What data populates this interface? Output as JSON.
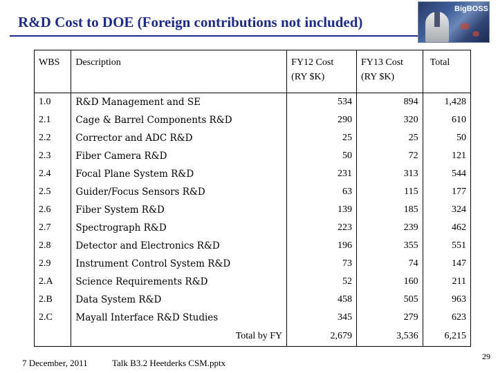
{
  "slide": {
    "title": "R&D Cost to DOE  (Foreign contributions not included)",
    "logo_text": "BigBOSS",
    "footer_date": "7 December,  2011",
    "footer_talk": "Talk B3.2  Heetderks  CSM.pptx",
    "page_number": "29"
  },
  "table": {
    "headers": {
      "wbs": "WBS",
      "description": "Description",
      "fy12_line1": "FY12 Cost",
      "fy12_line2": "(RY  $K)",
      "fy13_line1": "FY13 Cost",
      "fy13_line2": "(RY $K)",
      "total": "Total"
    },
    "rows": [
      {
        "wbs": "1.0",
        "description": "R&D Management and SE",
        "fy12": "534",
        "fy13": "894",
        "total": "1,428"
      },
      {
        "wbs": "2.1",
        "description": "Cage & Barrel Components R&D",
        "fy12": "290",
        "fy13": "320",
        "total": "610"
      },
      {
        "wbs": "2.2",
        "description": "Corrector and ADC R&D",
        "fy12": "25",
        "fy13": "25",
        "total": "50"
      },
      {
        "wbs": "2.3",
        "description": "Fiber Camera R&D",
        "fy12": "50",
        "fy13": "72",
        "total": "121"
      },
      {
        "wbs": "2.4",
        "description": "Focal Plane System R&D",
        "fy12": "231",
        "fy13": "313",
        "total": "544"
      },
      {
        "wbs": "2.5",
        "description": "Guider/Focus Sensors R&D",
        "fy12": "63",
        "fy13": "115",
        "total": "177"
      },
      {
        "wbs": "2.6",
        "description": "Fiber System R&D",
        "fy12": "139",
        "fy13": "185",
        "total": "324"
      },
      {
        "wbs": "2.7",
        "description": "Spectrograph R&D",
        "fy12": "223",
        "fy13": "239",
        "total": "462"
      },
      {
        "wbs": "2.8",
        "description": "Detector and Electronics R&D",
        "fy12": "196",
        "fy13": "355",
        "total": "551"
      },
      {
        "wbs": "2.9",
        "description": "Instrument Control System R&D",
        "fy12": "73",
        "fy13": "74",
        "total": "147"
      },
      {
        "wbs": "2.A",
        "description": "Science Requirements R&D",
        "fy12": "52",
        "fy13": "160",
        "total": "211"
      },
      {
        "wbs": "2.B",
        "description": "Data System R&D",
        "fy12": "458",
        "fy13": "505",
        "total": "963"
      },
      {
        "wbs": "2.C",
        "description": "Mayall Interface R&D Studies",
        "fy12": "345",
        "fy13": "279",
        "total": "623"
      }
    ],
    "total_row": {
      "label": "Total by FY",
      "fy12": "2,679",
      "fy13": "3,536",
      "total": "6,215"
    }
  },
  "colors": {
    "title": "#1f2b8a",
    "rule": "#1f2b8a"
  }
}
